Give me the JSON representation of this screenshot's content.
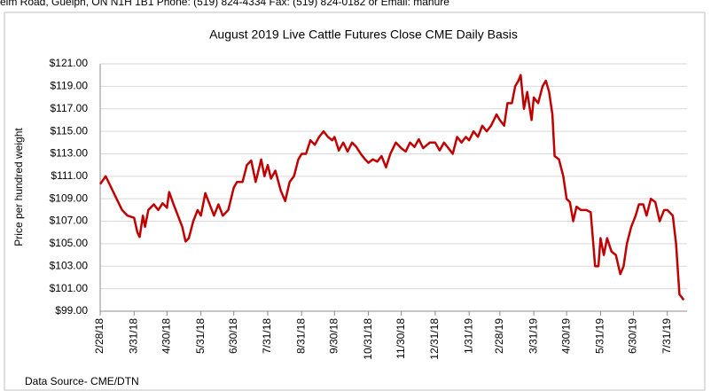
{
  "header": {
    "text": "elm Road, Guelph, ON  N1H 1B1 Phone: (519) 824-4334 Fax: (519) 824-0182 or Email: manure"
  },
  "chart_data": {
    "type": "line",
    "title": "August 2019 Live Cattle Futures   Close  CME   Daily Basis",
    "y_label": "Price per hundred weight",
    "source": "Data Source- CME/DTN",
    "color": "#c00000",
    "grid": true,
    "xlim": [
      "2018-02-28",
      "2019-08-18"
    ],
    "ylim": [
      99,
      121
    ],
    "yticks": [
      {
        "value": 99,
        "label": "$99.00"
      },
      {
        "value": 101,
        "label": "$101.00"
      },
      {
        "value": 103,
        "label": "$103.00"
      },
      {
        "value": 105,
        "label": "$105.00"
      },
      {
        "value": 107,
        "label": "$107.00"
      },
      {
        "value": 109,
        "label": "$109.00"
      },
      {
        "value": 111,
        "label": "$111.00"
      },
      {
        "value": 113,
        "label": "$113.00"
      },
      {
        "value": 115,
        "label": "$115.00"
      },
      {
        "value": 117,
        "label": "$117.00"
      },
      {
        "value": 119,
        "label": "$119.00"
      },
      {
        "value": 121,
        "label": "$121.00"
      }
    ],
    "xticks": [
      {
        "value": "2018-02-28",
        "label": "2/28/18"
      },
      {
        "value": "2018-03-31",
        "label": "3/31/18"
      },
      {
        "value": "2018-04-30",
        "label": "4/30/18"
      },
      {
        "value": "2018-05-31",
        "label": "5/31/18"
      },
      {
        "value": "2018-06-30",
        "label": "6/30/18"
      },
      {
        "value": "2018-07-31",
        "label": "7/31/18"
      },
      {
        "value": "2018-08-31",
        "label": "8/31/18"
      },
      {
        "value": "2018-09-30",
        "label": "9/30/18"
      },
      {
        "value": "2018-10-31",
        "label": "10/31/18"
      },
      {
        "value": "2018-11-30",
        "label": "11/30/18"
      },
      {
        "value": "2018-12-31",
        "label": "12/31/18"
      },
      {
        "value": "2019-01-31",
        "label": "1/31/19"
      },
      {
        "value": "2019-02-28",
        "label": "2/28/19"
      },
      {
        "value": "2019-03-31",
        "label": "3/31/19"
      },
      {
        "value": "2019-04-30",
        "label": "4/30/19"
      },
      {
        "value": "2019-05-31",
        "label": "5/31/19"
      },
      {
        "value": "2019-06-30",
        "label": "6/30/19"
      },
      {
        "value": "2019-07-31",
        "label": "7/31/19"
      }
    ],
    "x": [
      "2018-02-28",
      "2018-03-05",
      "2018-03-10",
      "2018-03-15",
      "2018-03-20",
      "2018-03-25",
      "2018-03-31",
      "2018-04-03",
      "2018-04-05",
      "2018-04-08",
      "2018-04-10",
      "2018-04-13",
      "2018-04-18",
      "2018-04-22",
      "2018-04-26",
      "2018-04-30",
      "2018-05-02",
      "2018-05-06",
      "2018-05-10",
      "2018-05-14",
      "2018-05-17",
      "2018-05-20",
      "2018-05-24",
      "2018-05-28",
      "2018-05-31",
      "2018-06-04",
      "2018-06-08",
      "2018-06-12",
      "2018-06-16",
      "2018-06-20",
      "2018-06-25",
      "2018-06-30",
      "2018-07-03",
      "2018-07-08",
      "2018-07-12",
      "2018-07-16",
      "2018-07-20",
      "2018-07-25",
      "2018-07-28",
      "2018-07-31",
      "2018-08-03",
      "2018-08-07",
      "2018-08-12",
      "2018-08-16",
      "2018-08-20",
      "2018-08-24",
      "2018-08-28",
      "2018-08-31",
      "2018-09-04",
      "2018-09-08",
      "2018-09-12",
      "2018-09-16",
      "2018-09-20",
      "2018-09-24",
      "2018-09-28",
      "2018-09-30",
      "2018-10-04",
      "2018-10-08",
      "2018-10-12",
      "2018-10-16",
      "2018-10-20",
      "2018-10-24",
      "2018-10-28",
      "2018-10-31",
      "2018-11-04",
      "2018-11-08",
      "2018-11-12",
      "2018-11-16",
      "2018-11-20",
      "2018-11-25",
      "2018-11-30",
      "2018-12-04",
      "2018-12-08",
      "2018-12-12",
      "2018-12-16",
      "2018-12-20",
      "2018-12-26",
      "2018-12-31",
      "2019-01-04",
      "2019-01-08",
      "2019-01-12",
      "2019-01-16",
      "2019-01-20",
      "2019-01-24",
      "2019-01-28",
      "2019-01-31",
      "2019-02-04",
      "2019-02-08",
      "2019-02-12",
      "2019-02-16",
      "2019-02-20",
      "2019-02-25",
      "2019-02-28",
      "2019-03-04",
      "2019-03-07",
      "2019-03-11",
      "2019-03-14",
      "2019-03-17",
      "2019-03-19",
      "2019-03-22",
      "2019-03-25",
      "2019-03-29",
      "2019-03-31",
      "2019-04-04",
      "2019-04-08",
      "2019-04-11",
      "2019-04-14",
      "2019-04-17",
      "2019-04-19",
      "2019-04-23",
      "2019-04-27",
      "2019-04-30",
      "2019-05-03",
      "2019-05-06",
      "2019-05-09",
      "2019-05-13",
      "2019-05-18",
      "2019-05-22",
      "2019-05-26",
      "2019-05-29",
      "2019-05-31",
      "2019-06-03",
      "2019-06-06",
      "2019-06-10",
      "2019-06-14",
      "2019-06-18",
      "2019-06-21",
      "2019-06-24",
      "2019-06-28",
      "2019-07-02",
      "2019-07-05",
      "2019-07-09",
      "2019-07-12",
      "2019-07-16",
      "2019-07-20",
      "2019-07-24",
      "2019-07-28",
      "2019-07-31",
      "2019-08-05",
      "2019-08-08",
      "2019-08-11",
      "2019-08-15"
    ],
    "values": [
      110.3,
      111,
      110,
      109,
      108,
      107.5,
      107.3,
      106,
      105.6,
      107.5,
      106.5,
      108,
      108.5,
      108,
      108.6,
      108.2,
      109.6,
      108.5,
      107.5,
      106.5,
      105.2,
      105.5,
      107,
      108,
      107.5,
      109.5,
      108.5,
      107.5,
      108.5,
      107.5,
      108,
      110,
      110.5,
      110.5,
      112,
      112.4,
      110.5,
      112.5,
      111,
      112,
      110.8,
      111.5,
      109.7,
      108.8,
      110.5,
      111,
      112.5,
      113,
      113,
      114.2,
      113.8,
      114.5,
      115,
      114.5,
      114.2,
      114.5,
      113.3,
      114,
      113.2,
      114,
      113.6,
      113,
      112.5,
      112.2,
      112.5,
      112.3,
      112.8,
      111.8,
      113,
      114,
      113.5,
      113.2,
      114,
      113.6,
      114.3,
      113.5,
      114,
      114,
      113.3,
      114,
      113.5,
      113,
      114.5,
      114,
      114.5,
      114.2,
      115,
      114.5,
      115.5,
      115,
      115.5,
      116.5,
      116,
      115.5,
      117.5,
      117.5,
      119,
      119.5,
      120,
      117,
      118.5,
      116,
      118,
      117.5,
      119,
      119.5,
      118.5,
      116.5,
      112.8,
      112.5,
      111,
      109,
      108.7,
      107,
      108.3,
      108,
      108,
      107.8,
      103,
      103,
      105.5,
      104,
      105.5,
      104.3,
      104,
      102.3,
      103,
      105,
      106.5,
      107.5,
      108.5,
      108.5,
      107.5,
      109,
      108.7,
      107,
      108,
      108,
      107.5,
      105,
      100.5,
      100
    ]
  }
}
